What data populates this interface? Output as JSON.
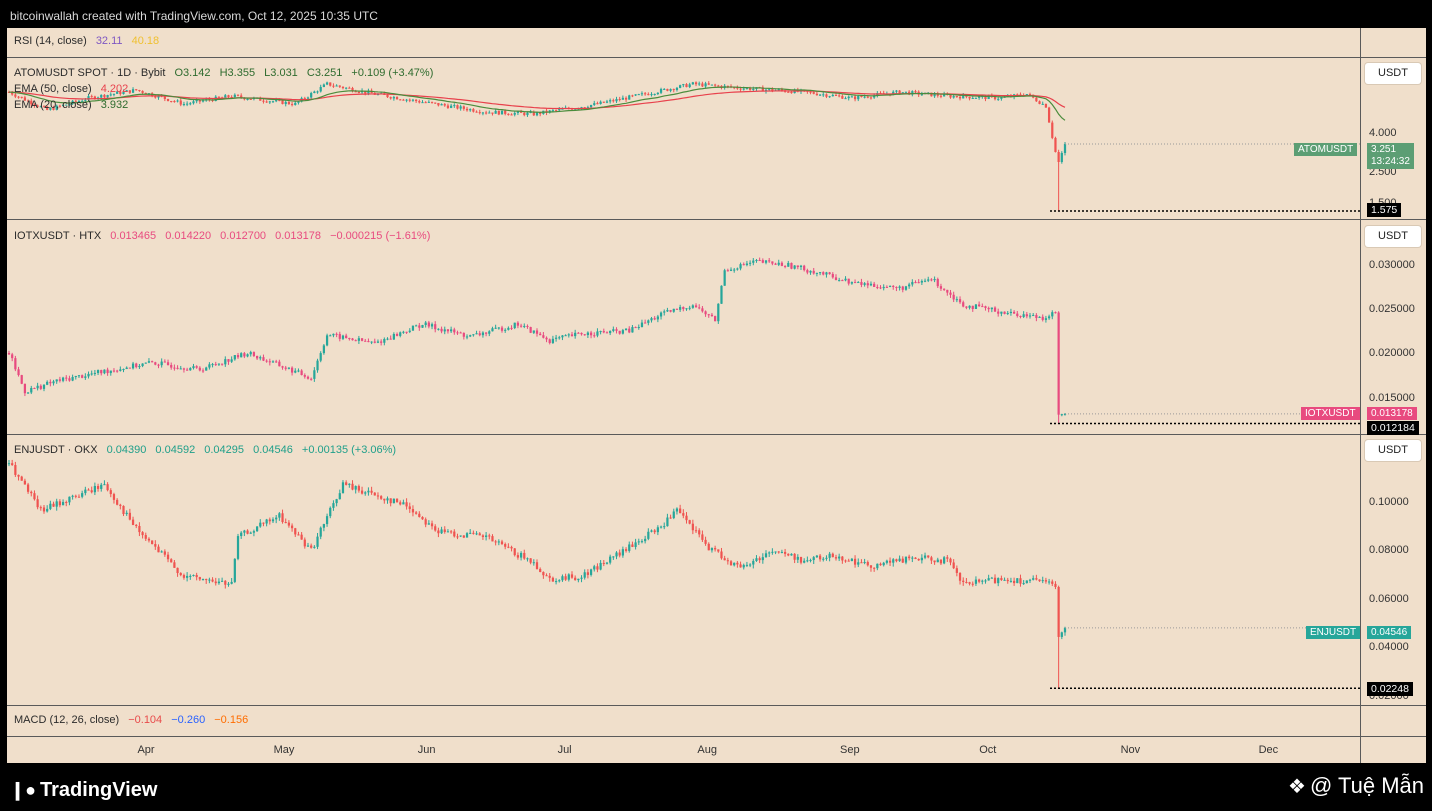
{
  "header": {
    "text": "bitcoinwallah created with TradingView.com, Oct 12, 2025 10:35 UTC"
  },
  "footer": {
    "logo_text": "TradingView",
    "watermark": "@ Tuệ Mẫn"
  },
  "rsi": {
    "label": "RSI (14, close)",
    "v1": "32.11",
    "v2": "40.18"
  },
  "macd": {
    "label": "MACD (12, 26, close)",
    "v1": "−0.104",
    "v2": "−0.260",
    "v3": "−0.156"
  },
  "unit_label": "USDT",
  "colors": {
    "up": "#26a69a",
    "down": "#ef5350",
    "iotx_down": "#e84a7f",
    "ema50": "#e8414c",
    "ema20": "#4a8c3c",
    "background": "#f0dfcb"
  },
  "chart_data": [
    {
      "type": "candlestick",
      "title": "ATOMUSDT SPOT · 1D · Bybit",
      "ohlc_text": {
        "o": "O3.142",
        "h": "H3.355",
        "l": "L3.031",
        "c": "C3.251",
        "chg": "+0.109 (+3.47%)"
      },
      "indicators": [
        {
          "name": "EMA (50, close)",
          "value": "4.202"
        },
        {
          "name": "EMA (20, close)",
          "value": "3.932"
        }
      ],
      "y_ticks": [
        "4.000",
        "2.500",
        "1.500"
      ],
      "ylim": [
        1.4,
        5.4
      ],
      "last_price_tag": {
        "symbol": "ATOMUSDT",
        "value": "3.251",
        "countdown": "13:24:32"
      },
      "low_marker": "1.575",
      "anchors": [
        [
          0,
          4.55
        ],
        [
          12,
          4.1
        ],
        [
          25,
          4.4
        ],
        [
          40,
          4.6
        ],
        [
          55,
          4.25
        ],
        [
          70,
          4.45
        ],
        [
          90,
          4.25
        ],
        [
          100,
          4.75
        ],
        [
          115,
          4.5
        ],
        [
          130,
          4.3
        ],
        [
          150,
          4.05
        ],
        [
          165,
          4.0
        ],
        [
          185,
          4.25
        ],
        [
          200,
          4.5
        ],
        [
          215,
          4.75
        ],
        [
          230,
          4.65
        ],
        [
          250,
          4.55
        ],
        [
          265,
          4.4
        ],
        [
          280,
          4.55
        ],
        [
          295,
          4.45
        ],
        [
          312,
          4.4
        ],
        [
          320,
          4.5
        ],
        [
          326,
          4.2
        ],
        [
          329,
          3.05
        ],
        [
          330,
          2.8
        ],
        [
          332,
          3.25
        ]
      ],
      "last_close": 3.251
    },
    {
      "type": "candlestick",
      "title": "IOTXUSDT · HTX",
      "ohlc_text": {
        "o": "0.013465",
        "h": "0.014220",
        "l": "0.012700",
        "c": "0.013178",
        "chg": "−0.000215 (−1.61%)"
      },
      "y_ticks": [
        "0.030000",
        "0.025000",
        "0.020000",
        "0.015000"
      ],
      "ylim": [
        0.0112,
        0.0333
      ],
      "last_price_tag": {
        "symbol": "IOTXUSDT",
        "value": "0.013178"
      },
      "low_marker": "0.012184",
      "anchors": [
        [
          0,
          0.0195
        ],
        [
          5,
          0.0155
        ],
        [
          15,
          0.0166
        ],
        [
          30,
          0.0176
        ],
        [
          45,
          0.0185
        ],
        [
          60,
          0.0178
        ],
        [
          75,
          0.0195
        ],
        [
          95,
          0.0169
        ],
        [
          100,
          0.0214
        ],
        [
          115,
          0.0205
        ],
        [
          130,
          0.0225
        ],
        [
          145,
          0.0212
        ],
        [
          160,
          0.0225
        ],
        [
          170,
          0.0208
        ],
        [
          180,
          0.0215
        ],
        [
          195,
          0.0218
        ],
        [
          205,
          0.0235
        ],
        [
          215,
          0.0245
        ],
        [
          222,
          0.0229
        ],
        [
          225,
          0.0281
        ],
        [
          235,
          0.029
        ],
        [
          245,
          0.0286
        ],
        [
          255,
          0.0278
        ],
        [
          265,
          0.0268
        ],
        [
          280,
          0.0262
        ],
        [
          290,
          0.0272
        ],
        [
          300,
          0.0245
        ],
        [
          315,
          0.0236
        ],
        [
          325,
          0.0232
        ],
        [
          329,
          0.0237
        ],
        [
          330,
          0.0131
        ],
        [
          332,
          0.0132
        ]
      ],
      "last_close": 0.013178
    },
    {
      "type": "candlestick",
      "title": "ENJUSDT · OKX",
      "ohlc_text": {
        "o": "0.04390",
        "h": "0.04592",
        "l": "0.04295",
        "c": "0.04546",
        "chg": "+0.00135 (+3.06%)"
      },
      "y_ticks": [
        "0.10000",
        "0.08000",
        "0.06000",
        "0.04000",
        "0.02000"
      ],
      "ylim": [
        0.0165,
        0.1188
      ],
      "last_price_tag": {
        "symbol": "ENJUSDT",
        "value": "0.04546"
      },
      "low_marker": "0.02248",
      "anchors": [
        [
          0,
          0.108
        ],
        [
          10,
          0.09
        ],
        [
          30,
          0.1
        ],
        [
          40,
          0.083
        ],
        [
          55,
          0.065
        ],
        [
          70,
          0.062
        ],
        [
          72,
          0.08
        ],
        [
          85,
          0.088
        ],
        [
          95,
          0.075
        ],
        [
          105,
          0.1
        ],
        [
          125,
          0.092
        ],
        [
          135,
          0.082
        ],
        [
          150,
          0.08
        ],
        [
          165,
          0.07
        ],
        [
          170,
          0.064
        ],
        [
          180,
          0.065
        ],
        [
          195,
          0.076
        ],
        [
          205,
          0.084
        ],
        [
          210,
          0.09
        ],
        [
          220,
          0.076
        ],
        [
          230,
          0.068
        ],
        [
          240,
          0.075
        ],
        [
          250,
          0.071
        ],
        [
          260,
          0.073
        ],
        [
          270,
          0.069
        ],
        [
          285,
          0.072
        ],
        [
          295,
          0.071
        ],
        [
          300,
          0.062
        ],
        [
          312,
          0.064
        ],
        [
          325,
          0.063
        ],
        [
          329,
          0.061
        ],
        [
          330,
          0.042
        ],
        [
          332,
          0.0455
        ]
      ],
      "last_close": 0.04546
    }
  ],
  "x_axis": {
    "labels": [
      {
        "text": "Apr",
        "day": 33
      },
      {
        "text": "May",
        "day": 63
      },
      {
        "text": "Jun",
        "day": 94
      },
      {
        "text": "Jul",
        "day": 124
      },
      {
        "text": "Aug",
        "day": 155
      },
      {
        "text": "Sep",
        "day": 186
      },
      {
        "text": "Oct",
        "day": 216
      },
      {
        "text": "Nov",
        "day": 247
      },
      {
        "text": "Dec",
        "day": 277
      }
    ]
  }
}
